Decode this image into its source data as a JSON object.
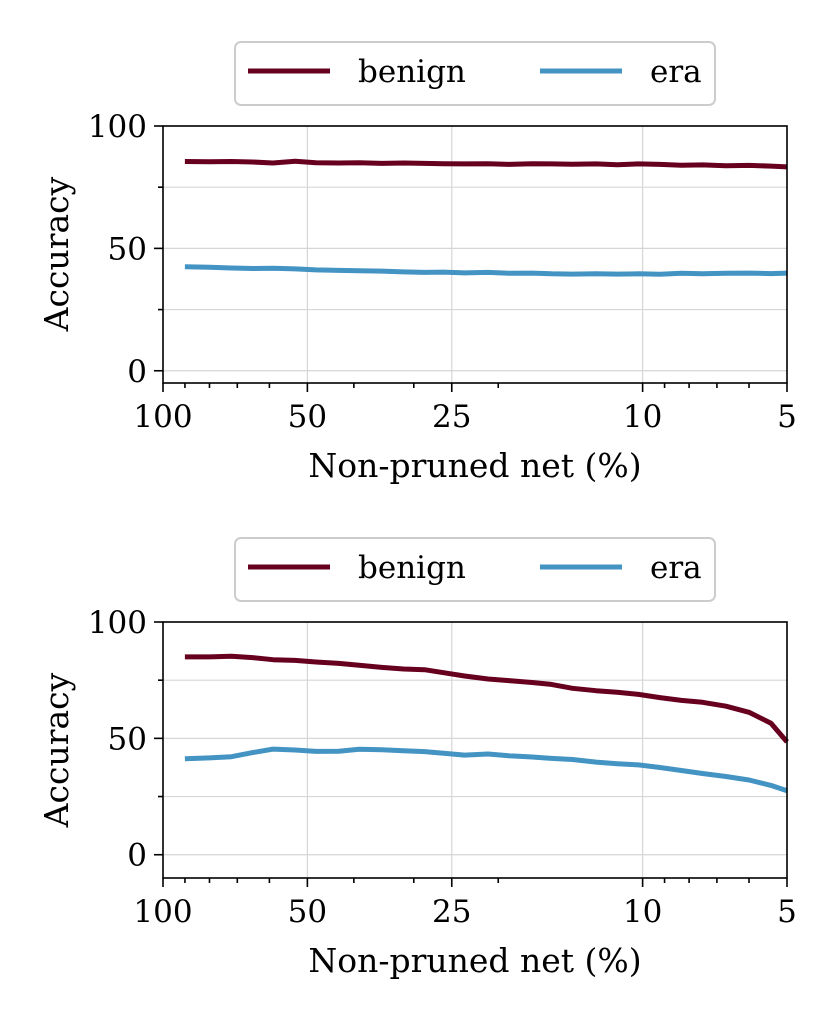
{
  "colors": {
    "benign": "#67001f",
    "era": "#4393c3"
  },
  "chart_data": [
    {
      "type": "line",
      "title": "",
      "xlabel": "Non-pruned net (%)",
      "ylabel": "Accuracy",
      "xscale": "log",
      "x_direction": "decreasing",
      "xlim": [
        100,
        5
      ],
      "ylim": [
        -5,
        100
      ],
      "xticks": [
        100,
        50,
        25,
        10,
        5
      ],
      "xtick_labels": [
        "100",
        "50",
        "25",
        "10",
        "5"
      ],
      "yticks": [
        0,
        50,
        100
      ],
      "ytick_labels": [
        "0",
        "50",
        "100"
      ],
      "grid": true,
      "legend": {
        "placement": "top-center-outside",
        "entries": [
          "benign",
          "era"
        ]
      },
      "x": [
        90,
        80,
        72,
        65,
        59,
        53,
        48,
        43,
        39,
        35,
        31.5,
        28.5,
        26,
        23.5,
        21,
        19,
        17,
        15.5,
        14,
        12.5,
        11.3,
        10.2,
        9.2,
        8.3,
        7.5,
        6.7,
        6,
        5.4,
        5
      ],
      "series": [
        {
          "name": "benign",
          "color": "#67001f",
          "values": [
            85.5,
            85.4,
            85.5,
            85.3,
            84.9,
            85.6,
            85.0,
            84.9,
            85.0,
            84.7,
            84.9,
            84.7,
            84.6,
            84.5,
            84.6,
            84.3,
            84.6,
            84.5,
            84.4,
            84.5,
            84.2,
            84.5,
            84.3,
            84.0,
            84.1,
            83.8,
            83.9,
            83.6,
            83.3
          ]
        },
        {
          "name": "era",
          "color": "#4393c3",
          "values": [
            42.5,
            42.3,
            42.0,
            41.8,
            41.9,
            41.6,
            41.2,
            41.0,
            40.9,
            40.7,
            40.4,
            40.2,
            40.3,
            40.0,
            40.2,
            39.8,
            39.9,
            39.6,
            39.5,
            39.6,
            39.5,
            39.6,
            39.4,
            39.8,
            39.6,
            39.8,
            39.9,
            39.7,
            39.9
          ]
        }
      ]
    },
    {
      "type": "line",
      "title": "",
      "xlabel": "Non-pruned net (%)",
      "ylabel": "Accuracy",
      "xscale": "log",
      "x_direction": "decreasing",
      "xlim": [
        100,
        5
      ],
      "ylim": [
        -10,
        100
      ],
      "xticks": [
        100,
        50,
        25,
        10,
        5
      ],
      "xtick_labels": [
        "100",
        "50",
        "25",
        "10",
        "5"
      ],
      "yticks": [
        0,
        50,
        100
      ],
      "ytick_labels": [
        "0",
        "50",
        "100"
      ],
      "grid": true,
      "legend": {
        "placement": "top-center-outside",
        "entries": [
          "benign",
          "era"
        ]
      },
      "x": [
        90,
        80,
        72,
        65,
        59,
        53,
        48,
        43,
        39,
        35,
        31.5,
        28.5,
        26,
        23.5,
        21,
        19,
        17,
        15.5,
        14,
        12.5,
        11.3,
        10.2,
        9.2,
        8.3,
        7.5,
        6.7,
        6,
        5.4,
        5
      ],
      "series": [
        {
          "name": "benign",
          "color": "#67001f",
          "values": [
            85.0,
            85.0,
            85.3,
            84.7,
            83.8,
            83.5,
            82.8,
            82.2,
            81.4,
            80.5,
            79.8,
            79.5,
            78.2,
            76.8,
            75.5,
            74.8,
            74.0,
            73.2,
            71.5,
            70.5,
            69.8,
            68.9,
            67.5,
            66.3,
            65.5,
            63.8,
            61.2,
            56.5,
            48.5
          ]
        },
        {
          "name": "era",
          "color": "#4393c3",
          "values": [
            41.2,
            41.6,
            42.1,
            43.9,
            45.4,
            45.0,
            44.4,
            44.5,
            45.3,
            45.1,
            44.7,
            44.3,
            43.6,
            42.8,
            43.3,
            42.5,
            42.0,
            41.4,
            40.9,
            39.8,
            39.1,
            38.6,
            37.5,
            36.2,
            34.9,
            33.6,
            32.1,
            29.8,
            27.5
          ]
        }
      ]
    }
  ]
}
